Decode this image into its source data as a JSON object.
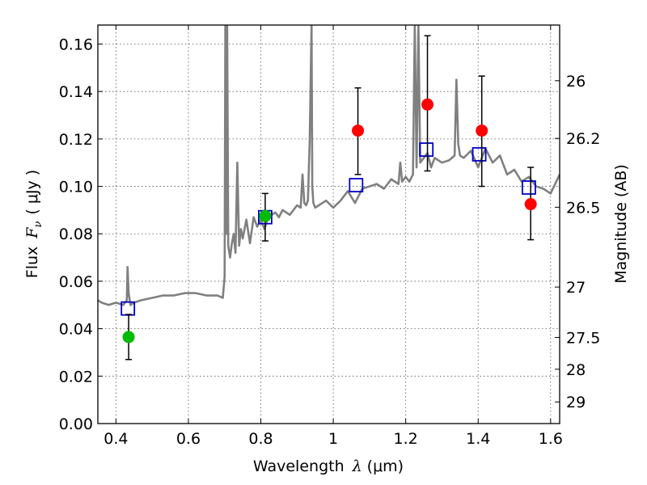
{
  "chart_data": {
    "type": "scatter",
    "xlabel": {
      "prefix": "Wavelength",
      "symbol": "λ",
      "unit": "(μm)"
    },
    "ylabel": {
      "prefix": "Flux",
      "symbol": "F",
      "subscript": "ν",
      "unit": "( μJy )"
    },
    "y2label": "Magnitude (AB)",
    "xlim": [
      0.35,
      1.625
    ],
    "ylim": [
      0.0,
      0.168
    ],
    "grid": true,
    "x_ticks": [
      0.4,
      0.6,
      0.8,
      1.0,
      1.2,
      1.4,
      1.6
    ],
    "x_tick_labels": [
      "0.4",
      "0.6",
      "0.8",
      "1",
      "1.2",
      "1.4",
      "1.6"
    ],
    "y_ticks": [
      0.0,
      0.02,
      0.04,
      0.06,
      0.08,
      0.1,
      0.12,
      0.14,
      0.16
    ],
    "y_tick_labels": [
      "0.00",
      "0.02",
      "0.04",
      "0.06",
      "0.08",
      "0.10",
      "0.12",
      "0.14",
      "0.16"
    ],
    "y2_ticks": [
      {
        "label": "26",
        "mag": 26.0
      },
      {
        "label": "26.2",
        "mag": 26.2
      },
      {
        "label": "26.5",
        "mag": 26.5
      },
      {
        "label": "27",
        "mag": 27.0
      },
      {
        "label": "27.5",
        "mag": 27.5
      },
      {
        "label": "28",
        "mag": 28.0
      },
      {
        "label": "29",
        "mag": 29.0
      }
    ],
    "colors": {
      "model": "#808080",
      "observed_red": "#ff0000",
      "observed_green": "#00bb00",
      "model_band": "#0000cc",
      "error_bar": "#000000",
      "grid": "#555555"
    },
    "series": [
      {
        "kind": "line",
        "x": [
          0.35,
          0.36,
          0.38,
          0.4,
          0.42,
          0.43,
          0.432,
          0.435,
          0.438,
          0.44,
          0.45,
          0.47,
          0.5,
          0.53,
          0.56,
          0.59,
          0.62,
          0.65,
          0.68,
          0.695,
          0.7,
          0.702,
          0.705,
          0.707,
          0.71,
          0.715,
          0.72,
          0.725,
          0.73,
          0.735,
          0.74,
          0.745,
          0.75,
          0.76,
          0.77,
          0.78,
          0.79,
          0.8,
          0.81,
          0.82,
          0.83,
          0.84,
          0.85,
          0.86,
          0.87,
          0.88,
          0.89,
          0.9,
          0.91,
          0.915,
          0.92,
          0.925,
          0.93,
          0.935,
          0.94,
          0.942,
          0.945,
          0.95,
          0.96,
          0.98,
          1.0,
          1.02,
          1.04,
          1.06,
          1.08,
          1.1,
          1.12,
          1.14,
          1.16,
          1.18,
          1.185,
          1.19,
          1.2,
          1.21,
          1.22,
          1.225,
          1.23,
          1.235,
          1.24,
          1.25,
          1.26,
          1.27,
          1.28,
          1.3,
          1.32,
          1.335,
          1.34,
          1.345,
          1.35,
          1.36,
          1.38,
          1.4,
          1.42,
          1.44,
          1.46,
          1.48,
          1.5,
          1.52,
          1.54,
          1.56,
          1.58,
          1.6,
          1.625
        ],
        "y": [
          0.052,
          0.051,
          0.05,
          0.051,
          0.05,
          0.052,
          0.066,
          0.055,
          0.052,
          0.05,
          0.051,
          0.052,
          0.053,
          0.054,
          0.054,
          0.055,
          0.055,
          0.054,
          0.054,
          0.053,
          0.062,
          0.168,
          0.08,
          0.168,
          0.075,
          0.07,
          0.076,
          0.08,
          0.072,
          0.11,
          0.075,
          0.082,
          0.078,
          0.086,
          0.076,
          0.087,
          0.083,
          0.086,
          0.082,
          0.087,
          0.088,
          0.089,
          0.087,
          0.09,
          0.089,
          0.088,
          0.09,
          0.092,
          0.091,
          0.105,
          0.093,
          0.092,
          0.094,
          0.12,
          0.168,
          0.1,
          0.093,
          0.091,
          0.092,
          0.094,
          0.091,
          0.094,
          0.098,
          0.093,
          0.099,
          0.1,
          0.101,
          0.099,
          0.103,
          0.101,
          0.11,
          0.102,
          0.104,
          0.102,
          0.105,
          0.168,
          0.108,
          0.168,
          0.11,
          0.112,
          0.114,
          0.108,
          0.112,
          0.11,
          0.111,
          0.113,
          0.145,
          0.118,
          0.113,
          0.112,
          0.115,
          0.108,
          0.116,
          0.11,
          0.113,
          0.105,
          0.107,
          0.102,
          0.104,
          0.1,
          0.099,
          0.097,
          0.105
        ]
      },
      {
        "kind": "points",
        "marker": "circle",
        "color": "green",
        "x": [
          0.435,
          0.812
        ],
        "y": [
          0.0365,
          0.0875
        ],
        "yerr_low": [
          0.0095,
          0.0105
        ],
        "yerr_high": [
          0.0095,
          0.0095
        ]
      },
      {
        "kind": "points",
        "marker": "circle",
        "color": "red",
        "x": [
          1.068,
          1.26,
          1.41,
          1.545
        ],
        "y": [
          0.1235,
          0.1345,
          0.1235,
          0.0925
        ],
        "yerr_low": [
          0.0185,
          0.028,
          0.0235,
          0.015
        ],
        "yerr_high": [
          0.018,
          0.029,
          0.023,
          0.0155
        ]
      },
      {
        "kind": "points",
        "marker": "square",
        "color": "blue",
        "x": [
          0.433,
          0.812,
          1.063,
          1.257,
          1.403,
          1.54
        ],
        "y": [
          0.0485,
          0.087,
          0.1005,
          0.1155,
          0.1135,
          0.0995
        ]
      }
    ]
  }
}
